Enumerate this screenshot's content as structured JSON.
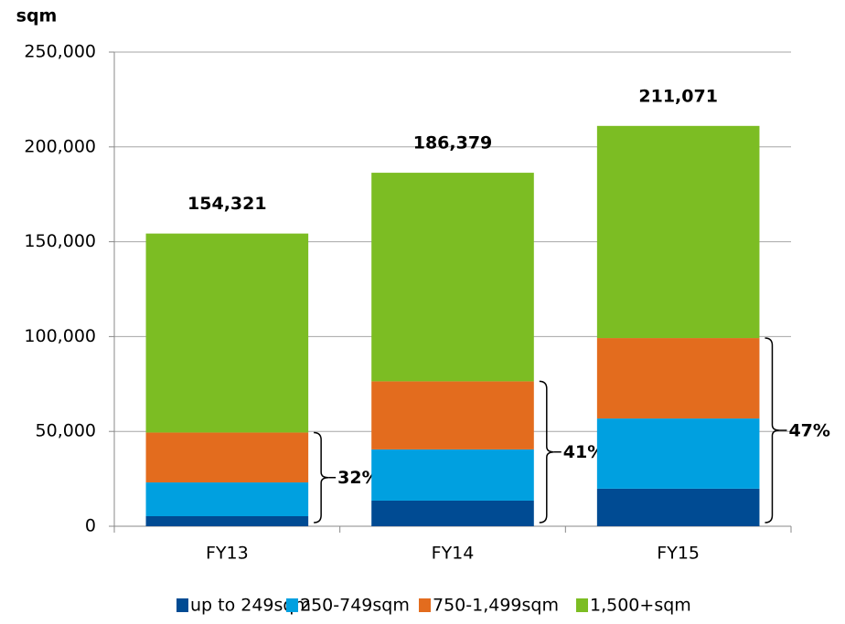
{
  "chart_data": {
    "type": "stacked-bar",
    "y_label": "sqm",
    "categories": [
      "FY13",
      "FY14",
      "FY15"
    ],
    "series": [
      {
        "name": "up to 249sqm",
        "color": "#004b93",
        "values": [
          5300,
          13500,
          19800
        ]
      },
      {
        "name": "250-749sqm",
        "color": "#00a0e0",
        "values": [
          17800,
          27000,
          37000
        ]
      },
      {
        "name": "750-1,499sqm",
        "color": "#e36c1e",
        "values": [
          26300,
          35900,
          42400
        ]
      },
      {
        "name": "1,500+sqm",
        "color": "#7cbd23",
        "values": [
          104921,
          109979,
          111871
        ]
      }
    ],
    "totals": {
      "values": [
        154321,
        186379,
        211071
      ],
      "value_labels": [
        "154,321",
        "186,379",
        "211,071"
      ]
    },
    "brackets": {
      "values": [
        32,
        41,
        47
      ],
      "value_labels": [
        "32%",
        "41%",
        "47%"
      ]
    },
    "ylim": [
      0,
      250000
    ],
    "yticks": [
      0,
      {
        "value": 50000,
        "label": "50,000"
      },
      {
        "value": 100000,
        "label": "100,000"
      },
      {
        "value": 150000,
        "label": "150,000"
      },
      {
        "value": 200000,
        "label": "200,000"
      },
      {
        "value": 250000,
        "label": "250,000"
      }
    ],
    "grid": true,
    "legend": "bottom"
  }
}
